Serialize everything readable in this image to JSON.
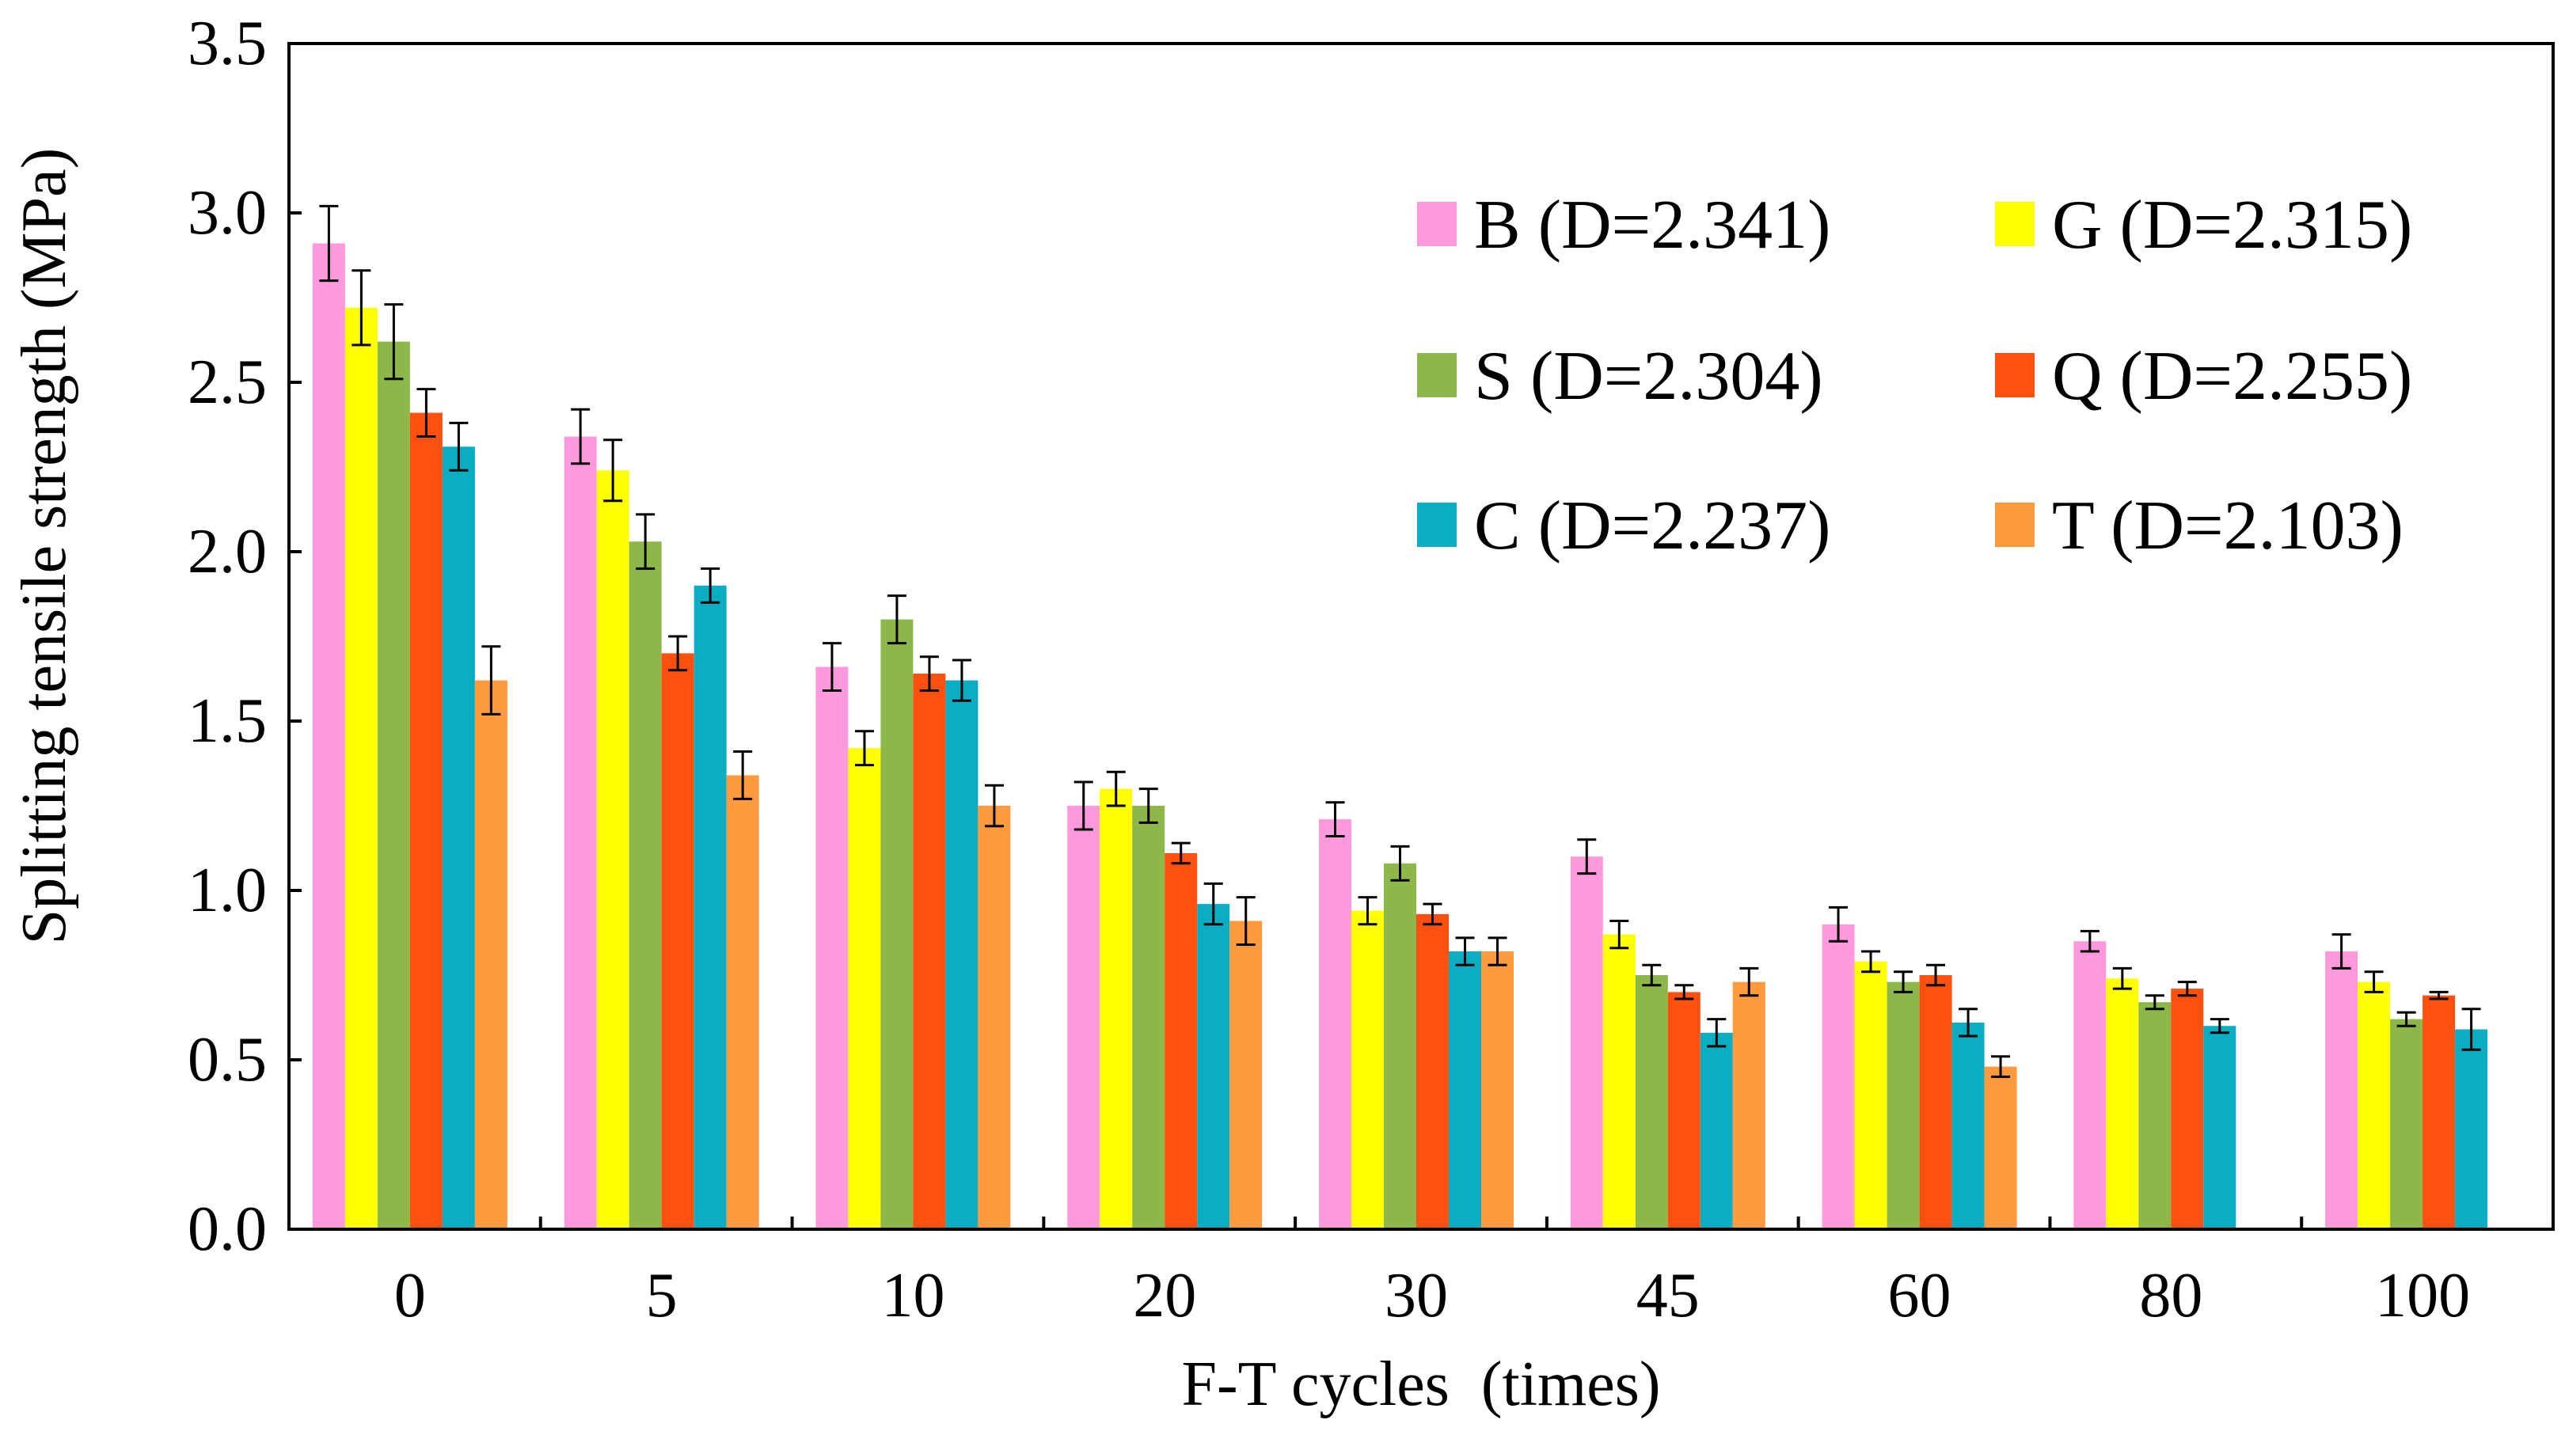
{
  "chart_data": {
    "type": "bar",
    "xlabel": "F-T cycles  (times)",
    "ylabel": "Splitting tensile strength (MPa)",
    "ylim": [
      0,
      3.5
    ],
    "yticks": [
      "0.0",
      "0.5",
      "1.0",
      "1.5",
      "2.0",
      "2.5",
      "3.0",
      "3.5"
    ],
    "categories": [
      "0",
      "5",
      "10",
      "20",
      "30",
      "45",
      "60",
      "80",
      "100"
    ],
    "grid": false,
    "legend_position": "top-right",
    "error_bars": true,
    "series": [
      {
        "name": "B (D=2.341)",
        "color": "#FF99DD",
        "values": [
          2.91,
          2.34,
          1.66,
          1.25,
          1.21,
          1.1,
          0.9,
          0.85,
          0.82
        ],
        "errors": [
          0.11,
          0.08,
          0.07,
          0.07,
          0.05,
          0.05,
          0.05,
          0.03,
          0.05
        ]
      },
      {
        "name": "G (D=2.315)",
        "color": "#FFFF00",
        "values": [
          2.72,
          2.24,
          1.42,
          1.3,
          0.94,
          0.87,
          0.79,
          0.74,
          0.73
        ],
        "errors": [
          0.11,
          0.09,
          0.05,
          0.05,
          0.04,
          0.04,
          0.03,
          0.03,
          0.03
        ]
      },
      {
        "name": "S (D=2.304)",
        "color": "#8DB849",
        "values": [
          2.62,
          2.03,
          1.8,
          1.25,
          1.08,
          0.75,
          0.73,
          0.67,
          0.62
        ],
        "errors": [
          0.11,
          0.08,
          0.07,
          0.05,
          0.05,
          0.03,
          0.03,
          0.02,
          0.02
        ]
      },
      {
        "name": "Q (D=2.255)",
        "color": "#FF5010",
        "values": [
          2.41,
          1.7,
          1.64,
          1.11,
          0.93,
          0.7,
          0.75,
          0.71,
          0.69
        ],
        "errors": [
          0.07,
          0.05,
          0.05,
          0.03,
          0.03,
          0.02,
          0.03,
          0.02,
          0.01
        ]
      },
      {
        "name": "C (D=2.237)",
        "color": "#0AADC2",
        "values": [
          2.31,
          1.9,
          1.62,
          0.96,
          0.82,
          0.58,
          0.61,
          0.6,
          0.59
        ],
        "errors": [
          0.07,
          0.05,
          0.06,
          0.06,
          0.04,
          0.04,
          0.04,
          0.02,
          0.06
        ]
      },
      {
        "name": "T (D=2.103)",
        "color": "#FF9A3E",
        "values": [
          1.62,
          1.34,
          1.25,
          0.91,
          0.82,
          0.73,
          0.48,
          null,
          null
        ],
        "errors": [
          0.1,
          0.07,
          0.06,
          0.07,
          0.04,
          0.04,
          0.03,
          null,
          null
        ]
      }
    ]
  }
}
